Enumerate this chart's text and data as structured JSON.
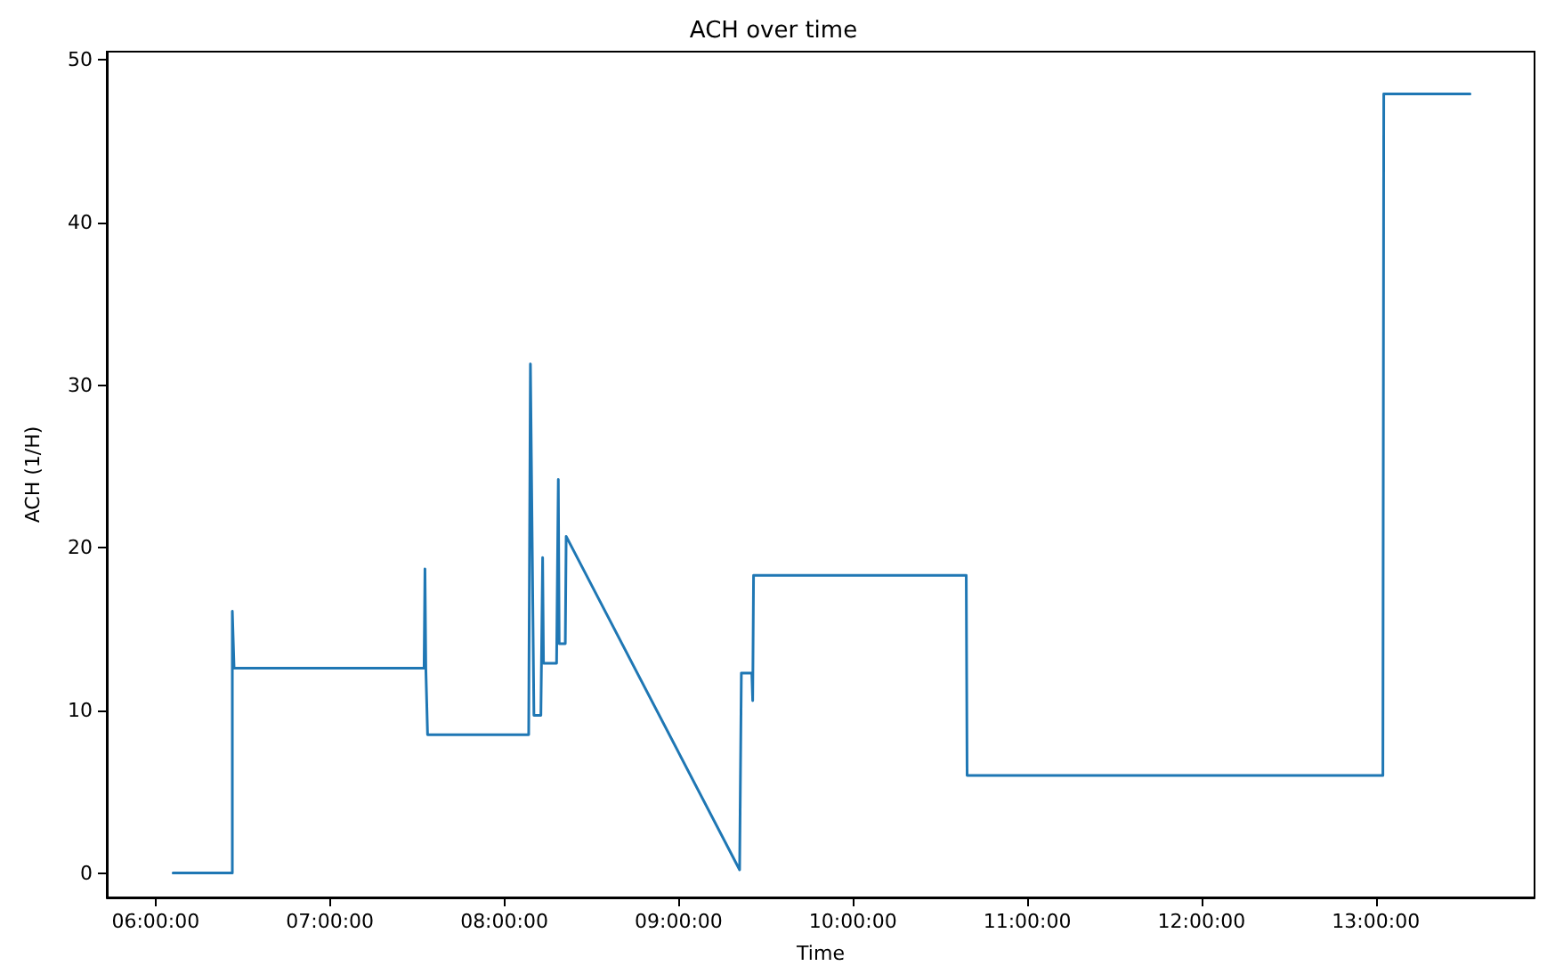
{
  "chart_data": {
    "type": "line",
    "title": "ACH over time",
    "xlabel": "Time",
    "ylabel": "ACH (1/H)",
    "x": [
      6.1,
      6.44,
      6.44,
      6.45,
      7.54,
      7.545,
      7.55,
      7.56,
      8.14,
      8.15,
      8.17,
      8.21,
      8.22,
      8.225,
      8.3,
      8.31,
      8.315,
      8.35,
      8.355,
      9.35,
      9.36,
      9.42,
      9.425,
      9.43,
      10.65,
      10.655,
      13.04,
      13.045,
      13.54
    ],
    "series": [
      {
        "color": "#1f77b4",
        "values": [
          0,
          0,
          16.1,
          12.6,
          12.6,
          18.7,
          12.6,
          8.5,
          8.5,
          31.3,
          9.7,
          9.7,
          19.4,
          12.9,
          12.9,
          24.2,
          14.1,
          14.1,
          20.7,
          0.2,
          12.3,
          12.3,
          10.6,
          18.3,
          18.3,
          6.0,
          6.0,
          47.9,
          47.9
        ]
      }
    ],
    "xlim": [
      5.72,
      13.91
    ],
    "ylim": [
      -1.5,
      50.5
    ],
    "xticks": [
      {
        "value": 6,
        "label": "06:00:00"
      },
      {
        "value": 7,
        "label": "07:00:00"
      },
      {
        "value": 8,
        "label": "08:00:00"
      },
      {
        "value": 9,
        "label": "09:00:00"
      },
      {
        "value": 10,
        "label": "10:00:00"
      },
      {
        "value": 11,
        "label": "11:00:00"
      },
      {
        "value": 12,
        "label": "12:00:00"
      },
      {
        "value": 13,
        "label": "13:00:00"
      }
    ],
    "yticks": [
      0,
      10,
      20,
      30,
      40,
      50
    ],
    "grid": false,
    "marker": "none",
    "line_style": "solid"
  }
}
